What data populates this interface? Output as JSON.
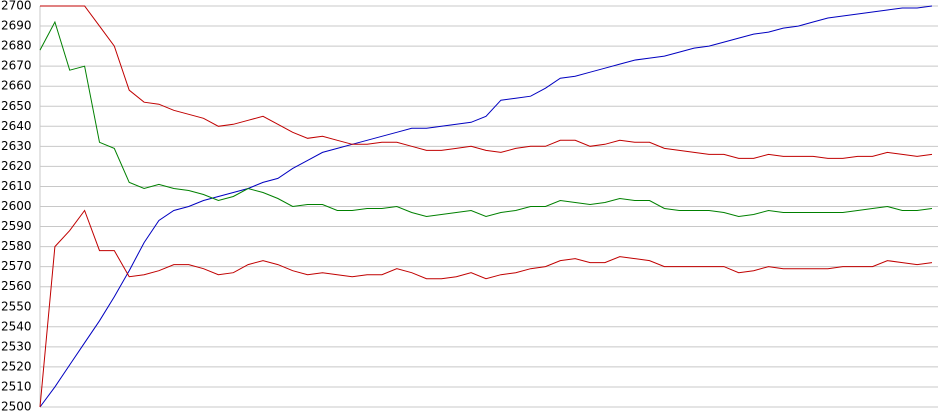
{
  "chart_data": {
    "type": "line",
    "ylim": [
      2500,
      2700
    ],
    "yticks": [
      2500,
      2510,
      2520,
      2530,
      2540,
      2550,
      2560,
      2570,
      2580,
      2590,
      2600,
      2610,
      2620,
      2630,
      2640,
      2650,
      2660,
      2670,
      2680,
      2690,
      2700
    ],
    "grid": true,
    "series": [
      {
        "color": "#0000c0",
        "values": [
          2500,
          2510,
          2521,
          2532,
          2543,
          2555,
          2568,
          2582,
          2593,
          2598,
          2600,
          2603,
          2605,
          2607,
          2609,
          2612,
          2614,
          2619,
          2623,
          2627,
          2629,
          2631,
          2633,
          2635,
          2637,
          2639,
          2639,
          2640,
          2641,
          2642,
          2645,
          2653,
          2654,
          2655,
          2659,
          2664,
          2665,
          2667,
          2669,
          2671,
          2673,
          2674,
          2675,
          2677,
          2679,
          2680,
          2682,
          2684,
          2686,
          2687,
          2689,
          2690,
          2692,
          2694,
          2695,
          2696,
          2697,
          2698,
          2699,
          2699,
          2700
        ]
      },
      {
        "color": "#008000",
        "values": [
          2678,
          2692,
          2668,
          2670,
          2632,
          2629,
          2612,
          2609,
          2611,
          2609,
          2608,
          2606,
          2603,
          2605,
          2609,
          2607,
          2604,
          2600,
          2601,
          2601,
          2598,
          2598,
          2599,
          2599,
          2600,
          2597,
          2595,
          2596,
          2597,
          2598,
          2595,
          2597,
          2598,
          2600,
          2600,
          2603,
          2602,
          2601,
          2602,
          2604,
          2603,
          2603,
          2599,
          2598,
          2598,
          2598,
          2597,
          2595,
          2596,
          2598,
          2597,
          2597,
          2597,
          2597,
          2597,
          2598,
          2599,
          2600,
          2598,
          2598,
          2599
        ]
      },
      {
        "color": "#c00000",
        "values": [
          2700,
          2700,
          2700,
          2700,
          2690,
          2680,
          2658,
          2652,
          2651,
          2648,
          2646,
          2644,
          2640,
          2641,
          2643,
          2645,
          2641,
          2637,
          2634,
          2635,
          2633,
          2631,
          2631,
          2632,
          2632,
          2630,
          2628,
          2628,
          2629,
          2630,
          2628,
          2627,
          2629,
          2630,
          2630,
          2633,
          2633,
          2630,
          2631,
          2633,
          2632,
          2632,
          2629,
          2628,
          2627,
          2626,
          2626,
          2624,
          2624,
          2626,
          2625,
          2625,
          2625,
          2624,
          2624,
          2625,
          2625,
          2627,
          2626,
          2625,
          2626
        ]
      },
      {
        "color": "#c00000",
        "values": [
          2500,
          2580,
          2588,
          2598,
          2578,
          2578,
          2565,
          2566,
          2568,
          2571,
          2571,
          2569,
          2566,
          2567,
          2571,
          2573,
          2571,
          2568,
          2566,
          2567,
          2566,
          2565,
          2566,
          2566,
          2569,
          2567,
          2564,
          2564,
          2565,
          2567,
          2564,
          2566,
          2567,
          2569,
          2570,
          2573,
          2574,
          2572,
          2572,
          2575,
          2574,
          2573,
          2570,
          2570,
          2570,
          2570,
          2570,
          2567,
          2568,
          2570,
          2569,
          2569,
          2569,
          2569,
          2570,
          2570,
          2570,
          2573,
          2572,
          2571,
          2572
        ]
      }
    ]
  }
}
